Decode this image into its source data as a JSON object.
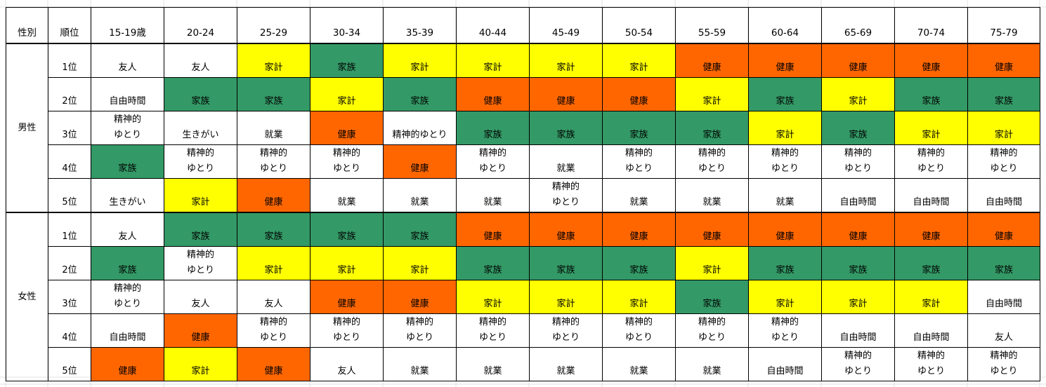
{
  "header": {
    "gender": "性別",
    "rank": "順位",
    "ages": [
      "15-19歳",
      "20-24",
      "25-29",
      "30-34",
      "35-39",
      "40-44",
      "45-49",
      "50-54",
      "55-59",
      "60-64",
      "65-69",
      "70-74",
      "75-79"
    ]
  },
  "colors": {
    "健康": "#ff6600",
    "家族": "#339966",
    "家計": "#ffff00",
    "other": "#ffffff"
  },
  "groups": [
    {
      "gender": "男性",
      "rows": [
        {
          "rank": "1位",
          "cells": [
            "友人",
            "友人",
            "家計",
            "家族",
            "家計",
            "家計",
            "家計",
            "家計",
            "健康",
            "健康",
            "健康",
            "健康",
            "健康"
          ]
        },
        {
          "rank": "2位",
          "cells": [
            "自由時間",
            "家族",
            "家族",
            "家計",
            "家族",
            "健康",
            "健康",
            "健康",
            "家計",
            "家族",
            "家計",
            "家族",
            "家族"
          ]
        },
        {
          "rank": "3位",
          "cells": [
            "精神的\nゆとり",
            "生きがい",
            "就業",
            "健康",
            "精神的ゆとり",
            "家族",
            "家族",
            "家族",
            "家族",
            "家計",
            "家族",
            "家計",
            "家計"
          ]
        },
        {
          "rank": "4位",
          "cells": [
            "家族",
            "精神的\nゆとり",
            "精神的\nゆとり",
            "精神的\nゆとり",
            "健康",
            "精神的\nゆとり",
            "就業",
            "精神的\nゆとり",
            "精神的\nゆとり",
            "精神的\nゆとり",
            "精神的\nゆとり",
            "精神的\nゆとり",
            "精神的\nゆとり"
          ]
        },
        {
          "rank": "5位",
          "cells": [
            "生きがい",
            "家計",
            "健康",
            "就業",
            "就業",
            "就業",
            "精神的\nゆとり",
            "就業",
            "就業",
            "就業",
            "自由時間",
            "自由時間",
            "自由時間"
          ]
        }
      ]
    },
    {
      "gender": "女性",
      "rows": [
        {
          "rank": "1位",
          "cells": [
            "友人",
            "家族",
            "家族",
            "家族",
            "家族",
            "健康",
            "健康",
            "健康",
            "健康",
            "健康",
            "健康",
            "健康",
            "健康"
          ]
        },
        {
          "rank": "2位",
          "cells": [
            "家族",
            "精神的\nゆとり",
            "家計",
            "家計",
            "家計",
            "家族",
            "家族",
            "家族",
            "家計",
            "家族",
            "家族",
            "家族",
            "家族"
          ]
        },
        {
          "rank": "3位",
          "cells": [
            "精神的\nゆとり",
            "友人",
            "友人",
            "健康",
            "健康",
            "家計",
            "家計",
            "家計",
            "家族",
            "家計",
            "家計",
            "家計",
            "自由時間"
          ]
        },
        {
          "rank": "4位",
          "cells": [
            "自由時間",
            "健康",
            "精神的\nゆとり",
            "精神的\nゆとり",
            "精神的\nゆとり",
            "精神的\nゆとり",
            "精神的\nゆとり",
            "精神的\nゆとり",
            "精神的\nゆとり",
            "精神的\nゆとり",
            "自由時間",
            "自由時間",
            "友人"
          ]
        },
        {
          "rank": "5位",
          "cells": [
            "健康",
            "家計",
            "健康",
            "友人",
            "就業",
            "就業",
            "就業",
            "就業",
            "就業",
            "自由時間",
            "精神的\nゆとり",
            "精神的\nゆとり",
            "精神的\nゆとり"
          ]
        }
      ]
    }
  ]
}
